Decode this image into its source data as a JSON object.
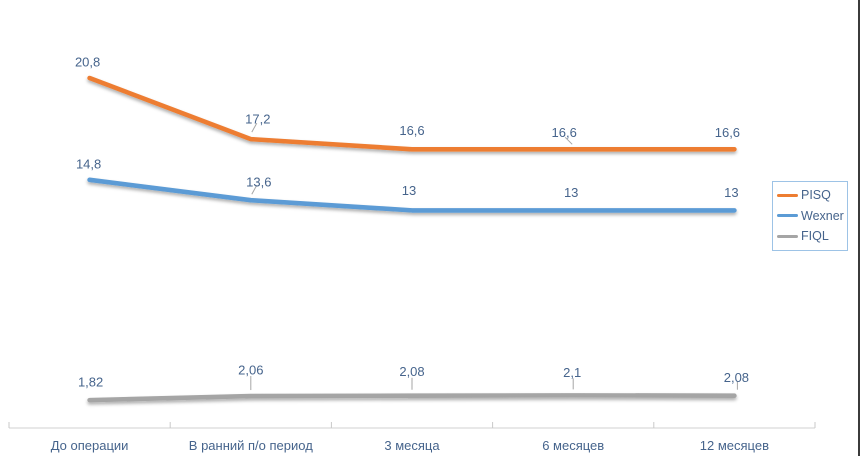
{
  "page": {
    "background": "#FFFFFF",
    "edge_line_color": "#3B3B3B"
  },
  "chart_data": {
    "type": "line",
    "title": "",
    "xlabel": "",
    "ylabel": "",
    "categories": [
      "До операции",
      "В ранний п/о период",
      "3 месяца",
      "6 месяцев",
      "12 месяцев"
    ],
    "series": [
      {
        "name": "PISQ",
        "color": "#ED7D31",
        "values": [
          20.8,
          17.2,
          16.6,
          16.6,
          16.6
        ],
        "labels": [
          "20,8",
          "17,2",
          "16,6",
          "16,6",
          "16,6"
        ],
        "label_offsets": [
          [
            -2,
            -16
          ],
          [
            7,
            -20
          ],
          [
            0,
            -19
          ],
          [
            -9,
            -17
          ],
          [
            -7,
            -17
          ]
        ],
        "leaders": [
          null,
          [
            6,
            -16,
            1,
            -7
          ],
          null,
          [
            -8,
            -12,
            -1,
            -5
          ],
          null
        ]
      },
      {
        "name": "Wexner",
        "color": "#5B9BD5",
        "values": [
          14.8,
          13.6,
          13,
          13,
          13
        ],
        "labels": [
          "14,8",
          "13,6",
          "13",
          "13",
          "13"
        ],
        "label_offsets": [
          [
            -1,
            -16
          ],
          [
            8,
            -18
          ],
          [
            -3,
            -20
          ],
          [
            -2,
            -18
          ],
          [
            -3,
            -18
          ]
        ],
        "leaders": [
          null,
          [
            6,
            -15,
            1,
            -6
          ],
          null,
          null,
          null
        ]
      },
      {
        "name": "FIQL",
        "color": "#A5A5A5",
        "values": [
          1.82,
          2.06,
          2.08,
          2.1,
          2.08
        ],
        "labels": [
          "1,82",
          "2,06",
          "2,08",
          "2,1",
          "2,08"
        ],
        "label_offsets": [
          [
            1,
            -18
          ],
          [
            0,
            -26
          ],
          [
            0,
            -24
          ],
          [
            -1,
            -23
          ],
          [
            2,
            -18
          ]
        ],
        "leaders": [
          null,
          [
            0,
            -20,
            0,
            -6
          ],
          [
            0,
            -18,
            0,
            -6
          ],
          [
            0,
            -17,
            0,
            -6
          ],
          [
            3,
            -14,
            3,
            -6
          ]
        ]
      }
    ],
    "legend": {
      "position": "right",
      "border_color": "#9DC3E6"
    },
    "axis": {
      "x_line_color": "#D9D9D9",
      "tick_color": "#C9C9C9",
      "ticks": "inside",
      "y_axis_visible": false
    },
    "label_color": "#46648C",
    "leader_color": "#A6A6A6",
    "grid": false,
    "ylim": [
      0,
      25
    ]
  }
}
